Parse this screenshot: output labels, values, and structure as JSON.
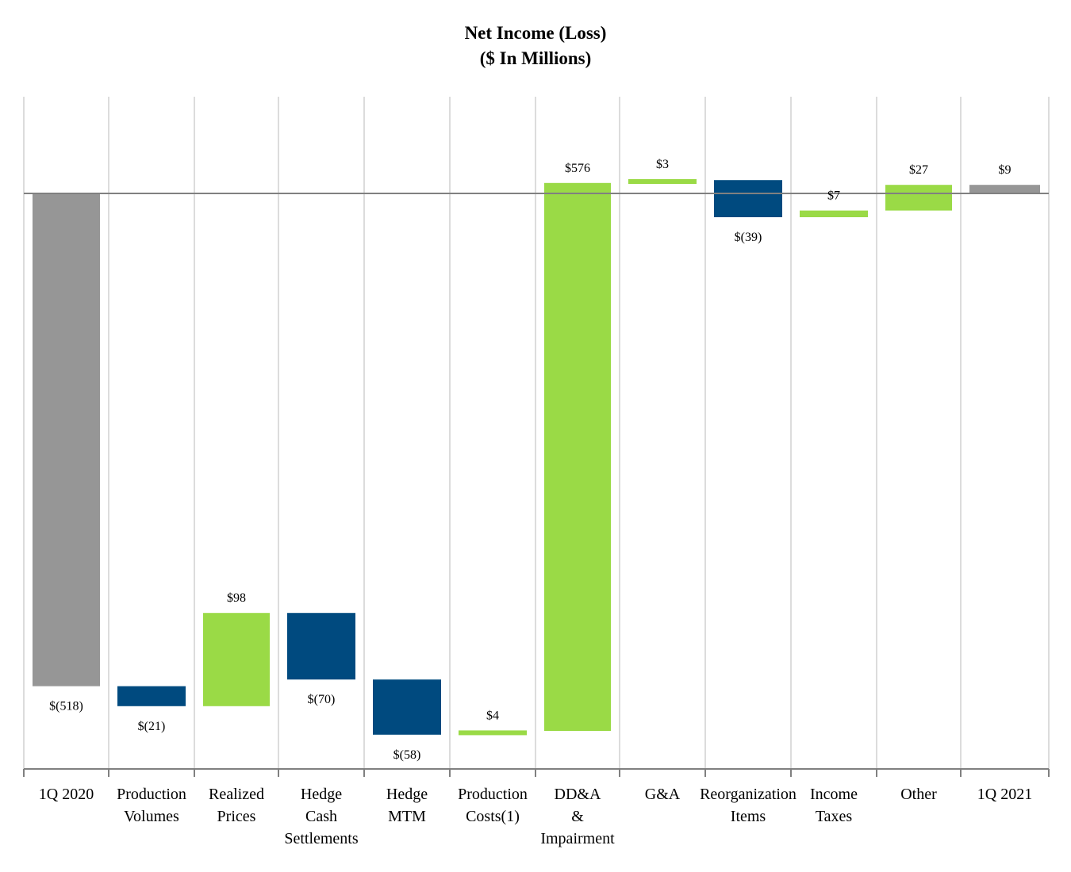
{
  "chart_data": {
    "type": "waterfall",
    "title": "Net Income (Loss)",
    "subtitle": "($ In Millions)",
    "xlabel": "",
    "ylabel": "",
    "ylim": [
      -605,
      95
    ],
    "grid": "vertical category separators",
    "legend": "none",
    "colors": {
      "total": "#969696",
      "increase": "#9ADA46",
      "decrease": "#004A7F",
      "separator": "#DCDCDC",
      "baseline": "#808080",
      "axis": "#808080"
    },
    "steps": [
      {
        "category": "1Q 2020",
        "lines": [
          "1Q 2020"
        ],
        "value": -518,
        "kind": "total",
        "label": "$(518)"
      },
      {
        "category": "Production Volumes",
        "lines": [
          "Production",
          "Volumes"
        ],
        "value": -21,
        "kind": "decrease",
        "label": "$(21)"
      },
      {
        "category": "Realized Prices",
        "lines": [
          "Realized",
          "Prices"
        ],
        "value": 98,
        "kind": "increase",
        "label": "$98"
      },
      {
        "category": "Hedge Cash Settlements",
        "lines": [
          "Hedge",
          "Cash",
          "Settlements"
        ],
        "value": -70,
        "kind": "decrease",
        "label": "$(70)"
      },
      {
        "category": "Hedge MTM",
        "lines": [
          "Hedge",
          "MTM"
        ],
        "value": -58,
        "kind": "decrease",
        "label": "$(58)"
      },
      {
        "category": "Production Costs(1)",
        "lines": [
          "Production",
          "Costs(1)"
        ],
        "value": 4,
        "kind": "increase",
        "label": "$4"
      },
      {
        "category": "DD&A & Impairment",
        "lines": [
          "DD&A",
          "&",
          "Impairment"
        ],
        "value": 576,
        "kind": "increase",
        "label": "$576"
      },
      {
        "category": "G&A",
        "lines": [
          "G&A"
        ],
        "value": 3,
        "kind": "increase",
        "label": "$3"
      },
      {
        "category": "Reorganization Items",
        "lines": [
          "Reorganization",
          "Items"
        ],
        "value": -39,
        "kind": "decrease",
        "label": "$(39)"
      },
      {
        "category": "Income Taxes",
        "lines": [
          "Income",
          "Taxes"
        ],
        "value": 7,
        "kind": "increase",
        "label": "$7"
      },
      {
        "category": "Other",
        "lines": [
          "Other"
        ],
        "value": 27,
        "kind": "increase",
        "label": "$27"
      },
      {
        "category": "1Q 2021",
        "lines": [
          "1Q 2021"
        ],
        "value": 9,
        "kind": "total",
        "label": "$9"
      }
    ]
  }
}
